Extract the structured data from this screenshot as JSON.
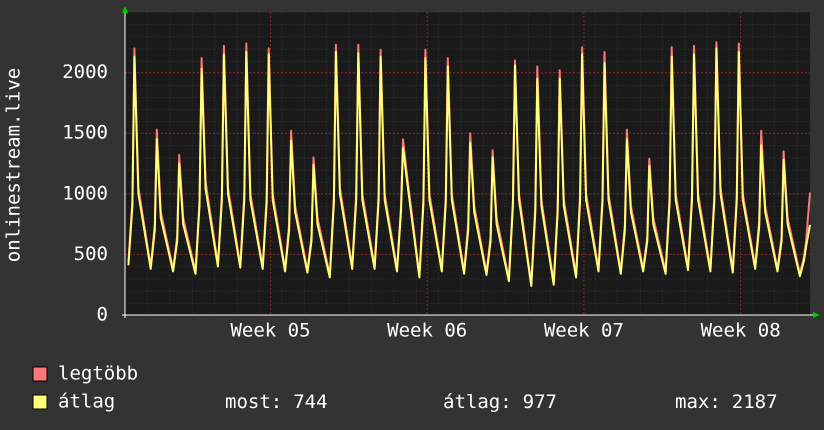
{
  "chart_data": {
    "type": "line",
    "ylabel": "onlinestream.live",
    "x": [
      0.15,
      0.33,
      0.42,
      0.6,
      1.15,
      1.33,
      1.42,
      1.6,
      2.15,
      2.33,
      2.42,
      2.6,
      3.15,
      3.33,
      3.42,
      3.6,
      4.15,
      4.33,
      4.42,
      4.6,
      5.15,
      5.33,
      5.42,
      5.6,
      6.15,
      6.33,
      6.42,
      6.6,
      7.15,
      7.33,
      7.42,
      7.6,
      8.15,
      8.33,
      8.42,
      8.6,
      9.15,
      9.33,
      9.42,
      9.6,
      10.15,
      10.33,
      10.42,
      10.6,
      11.15,
      11.33,
      11.42,
      11.6,
      12.15,
      12.33,
      12.42,
      12.6,
      13.15,
      13.33,
      13.42,
      13.6,
      14.15,
      14.33,
      14.42,
      14.6,
      15.15,
      15.33,
      15.42,
      15.6,
      16.15,
      16.33,
      16.42,
      16.6,
      17.15,
      17.33,
      17.42,
      17.6,
      18.15,
      18.33,
      18.42,
      18.6,
      19.15,
      19.33,
      19.42,
      19.6,
      20.15,
      20.33,
      20.42,
      20.6,
      21.15,
      21.33,
      21.42,
      21.6,
      22.15,
      22.33,
      22.42,
      22.6,
      23.15,
      23.33,
      23.42,
      23.6,
      24.15,
      24.33,
      24.42,
      24.6,
      25.15,
      25.33,
      25.42,
      25.6,
      26.15,
      26.33,
      26.42,
      26.6,
      27.15,
      27.33,
      27.42,
      27.6,
      28.15,
      28.33,
      28.42,
      28.6,
      29.15,
      29.33,
      29.42,
      29.6,
      30.15,
      30.33,
      30.42,
      30.6
    ],
    "xlim": [
      0,
      30.6
    ],
    "xticks": [
      {
        "value": 6.5,
        "label": "Week 05"
      },
      {
        "value": 13.5,
        "label": "Week 06"
      },
      {
        "value": 20.5,
        "label": "Week 07"
      },
      {
        "value": 27.5,
        "label": "Week 08"
      }
    ],
    "ylim": [
      0,
      2500
    ],
    "yticks": [
      0,
      500,
      1000,
      1500,
      2000
    ],
    "grid": true,
    "series": [
      {
        "name": "legtöbb",
        "color": "#ff7777",
        "values": [
          440,
          950,
          2200,
          1050,
          400,
          750,
          1530,
          850,
          380,
          650,
          1320,
          800,
          360,
          950,
          2120,
          1100,
          420,
          1000,
          2220,
          1050,
          410,
          1000,
          2240,
          1000,
          400,
          980,
          2200,
          1000,
          380,
          750,
          1520,
          900,
          370,
          650,
          1300,
          800,
          330,
          980,
          2230,
          1050,
          400,
          1000,
          2230,
          1000,
          400,
          990,
          2190,
          1000,
          380,
          900,
          1450,
          1150,
          330,
          960,
          2190,
          1000,
          380,
          980,
          2120,
          1000,
          360,
          750,
          1500,
          900,
          350,
          650,
          1360,
          800,
          300,
          950,
          2100,
          1000,
          260,
          900,
          2050,
          950,
          270,
          900,
          2020,
          950,
          330,
          1000,
          2210,
          1000,
          380,
          980,
          2170,
          1000,
          360,
          750,
          1530,
          900,
          380,
          650,
          1290,
          800,
          360,
          980,
          2210,
          1000,
          390,
          1000,
          2220,
          1000,
          380,
          1000,
          2250,
          1050,
          370,
          1000,
          2240,
          1000,
          400,
          780,
          1520,
          900,
          380,
          650,
          1350,
          800,
          340,
          480,
          600,
          1010
        ]
      },
      {
        "name": "átlag",
        "color": "#ffff77",
        "values": [
          410,
          900,
          2130,
          1000,
          380,
          700,
          1450,
          800,
          360,
          610,
          1250,
          750,
          340,
          900,
          2030,
          1040,
          400,
          950,
          2150,
          1000,
          390,
          950,
          2170,
          950,
          380,
          930,
          2150,
          950,
          360,
          700,
          1440,
          850,
          350,
          610,
          1240,
          750,
          310,
          930,
          2170,
          1000,
          380,
          950,
          2160,
          950,
          380,
          940,
          2130,
          950,
          360,
          850,
          1380,
          1100,
          310,
          910,
          2120,
          950,
          360,
          930,
          2050,
          950,
          340,
          700,
          1420,
          850,
          330,
          610,
          1300,
          750,
          280,
          900,
          2060,
          950,
          240,
          850,
          1950,
          900,
          250,
          850,
          1950,
          900,
          310,
          950,
          2150,
          950,
          360,
          930,
          2080,
          950,
          340,
          700,
          1450,
          850,
          360,
          610,
          1230,
          750,
          340,
          930,
          2130,
          950,
          370,
          950,
          2150,
          950,
          360,
          950,
          2200,
          1000,
          350,
          950,
          2170,
          950,
          380,
          730,
          1400,
          850,
          360,
          610,
          1280,
          750,
          320,
          450,
          560,
          744
        ]
      }
    ],
    "stats": [
      {
        "label": "most:",
        "value": 744
      },
      {
        "label": "átlag:",
        "value": 977
      },
      {
        "label": "max:",
        "value": 2187
      }
    ]
  }
}
